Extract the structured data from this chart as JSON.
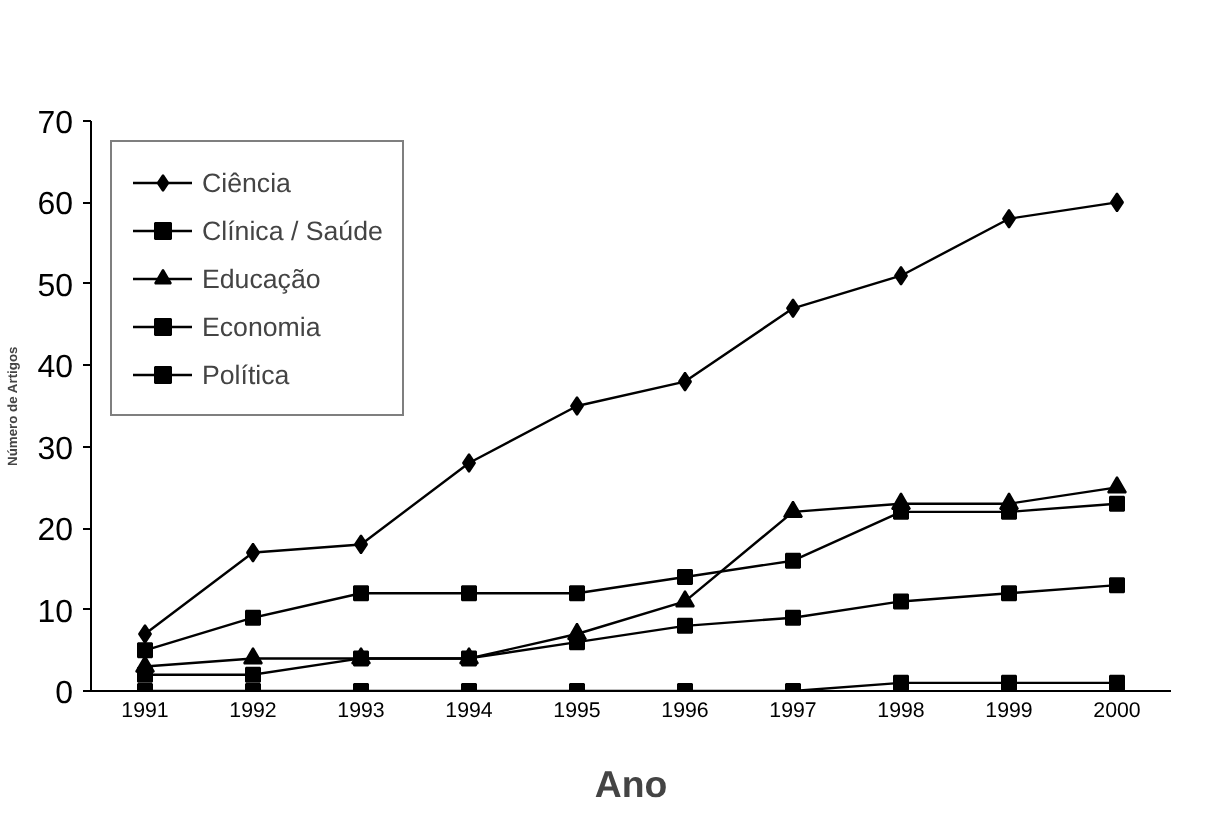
{
  "chart_data": {
    "type": "line",
    "xlabel": "Ano",
    "ylabel": "Número de Artigos",
    "categories": [
      "1991",
      "1992",
      "1993",
      "1994",
      "1995",
      "1996",
      "1997",
      "1998",
      "1999",
      "2000"
    ],
    "series": [
      {
        "name": "Ciência",
        "color": "#000000",
        "marker": "diamond",
        "values": [
          7,
          17,
          18,
          28,
          35,
          38,
          47,
          51,
          58,
          60
        ]
      },
      {
        "name": "Clínica / Saúde",
        "color": "#000000",
        "marker": "square",
        "values": [
          5,
          9,
          12,
          12,
          12,
          14,
          16,
          22,
          22,
          23
        ]
      },
      {
        "name": "Educação",
        "color": "#000000",
        "marker": "triangle",
        "values": [
          3,
          4,
          4,
          4,
          7,
          11,
          22,
          23,
          23,
          25
        ]
      },
      {
        "name": "Economia",
        "color": "#000000",
        "marker": "square",
        "values": [
          2,
          2,
          4,
          4,
          6,
          8,
          9,
          11,
          12,
          13
        ]
      },
      {
        "name": "Política",
        "color": "#000000",
        "marker": "square",
        "values": [
          0,
          0,
          0,
          0,
          0,
          0,
          0,
          1,
          1,
          1
        ]
      }
    ],
    "ylim": [
      0,
      70
    ],
    "yticks": [
      0,
      10,
      20,
      30,
      40,
      50,
      60,
      70
    ],
    "grid": false,
    "legend": "top left",
    "line_style": "solid"
  }
}
